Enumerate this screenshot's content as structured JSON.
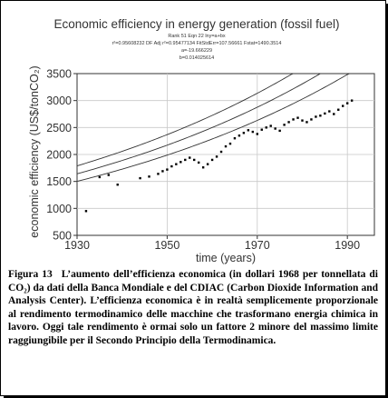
{
  "chart_data": {
    "type": "scatter",
    "title": "Economic efficiency in energy generation (fossil fuel)",
    "stats": {
      "line1": "Rank 51  Eqn 22  lny=a+bx",
      "line2": "r²=0.95608232  DF Adj r²=0.95477134  FitStdErr=107.56661  Fstat=1490.3514",
      "line3": "a=-19.666229",
      "line4": "b=0.014025614"
    },
    "xlabel": "time (years)",
    "ylabel": "economic efficiency (US$/tonCO₂)",
    "xlim": [
      1930,
      1996
    ],
    "ylim": [
      500,
      3500
    ],
    "xticks": [
      1930,
      1950,
      1970,
      1990
    ],
    "yticks": [
      500,
      1000,
      1500,
      2000,
      2500,
      3000,
      3500
    ],
    "x_tick_labels": [
      "1930",
      "1950",
      "1970",
      "1990"
    ],
    "y_tick_labels": [
      "500",
      "1000",
      "1500",
      "2000",
      "2500",
      "3000",
      "3500"
    ],
    "grid": true,
    "legend": "none",
    "points": [
      [
        1932,
        950
      ],
      [
        1935,
        1580
      ],
      [
        1937,
        1620
      ],
      [
        1939,
        1440
      ],
      [
        1944,
        1560
      ],
      [
        1946,
        1590
      ],
      [
        1948,
        1640
      ],
      [
        1949,
        1690
      ],
      [
        1950,
        1720
      ],
      [
        1951,
        1780
      ],
      [
        1952,
        1820
      ],
      [
        1953,
        1860
      ],
      [
        1954,
        1900
      ],
      [
        1955,
        1940
      ],
      [
        1956,
        1900
      ],
      [
        1957,
        1850
      ],
      [
        1958,
        1760
      ],
      [
        1959,
        1820
      ],
      [
        1960,
        1900
      ],
      [
        1961,
        1960
      ],
      [
        1962,
        2050
      ],
      [
        1963,
        2150
      ],
      [
        1964,
        2200
      ],
      [
        1965,
        2300
      ],
      [
        1966,
        2350
      ],
      [
        1967,
        2400
      ],
      [
        1968,
        2450
      ],
      [
        1969,
        2420
      ],
      [
        1970,
        2380
      ],
      [
        1971,
        2460
      ],
      [
        1972,
        2500
      ],
      [
        1973,
        2530
      ],
      [
        1974,
        2480
      ],
      [
        1975,
        2440
      ],
      [
        1976,
        2550
      ],
      [
        1977,
        2600
      ],
      [
        1978,
        2650
      ],
      [
        1979,
        2680
      ],
      [
        1980,
        2630
      ],
      [
        1981,
        2600
      ],
      [
        1982,
        2650
      ],
      [
        1983,
        2700
      ],
      [
        1984,
        2720
      ],
      [
        1985,
        2760
      ],
      [
        1986,
        2800
      ],
      [
        1987,
        2750
      ],
      [
        1988,
        2830
      ],
      [
        1989,
        2900
      ],
      [
        1990,
        2950
      ],
      [
        1991,
        3000
      ]
    ],
    "fit": {
      "a": -19.666229,
      "b": 0.014025614
    },
    "band": {
      "upper": 1.09,
      "lower": 0.915
    }
  },
  "caption": {
    "label": "Figura 13",
    "text": "L’aumento dell’efficienza economica (in dollari 1968 per tonnellata di CO₂)  da dati della Banca Mondiale e del CDIAC (Carbon Dioxide Information and Analysis Center). L’efficienza economica è in realtà semplicemente proporzionale al rendimento termodinamico delle macchine che trasformano energia chimica in lavoro. Oggi tale rendimento è ormai solo un fattore 2 minore del massimo limite raggiungibile per il Secondo Principio della Termodinamica."
  },
  "colors": {
    "plot_bg": "#ffffff",
    "grid": "#c8c8c8",
    "curve": "#333333",
    "points": "#000000",
    "text": "#333333"
  }
}
